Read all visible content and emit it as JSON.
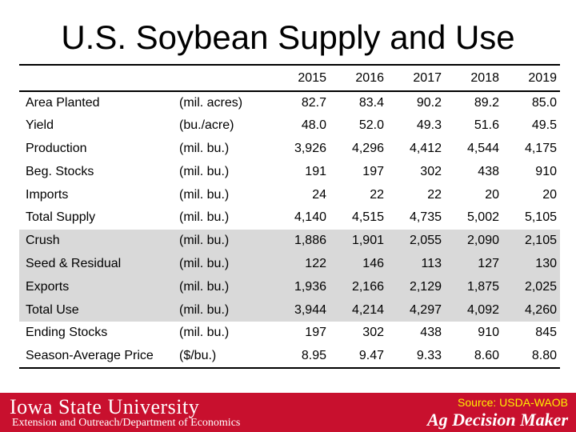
{
  "title": "U.S. Soybean Supply and Use",
  "years": [
    "2015",
    "2016",
    "2017",
    "2018",
    "2019"
  ],
  "rows": [
    {
      "label": "Area Planted",
      "unit": "(mil. acres)",
      "values": [
        "82.7",
        "83.4",
        "90.2",
        "89.2",
        "85.0"
      ],
      "shaded": false
    },
    {
      "label": "Yield",
      "unit": "(bu./acre)",
      "values": [
        "48.0",
        "52.0",
        "49.3",
        "51.6",
        "49.5"
      ],
      "shaded": false
    },
    {
      "label": "Production",
      "unit": "(mil. bu.)",
      "values": [
        "3,926",
        "4,296",
        "4,412",
        "4,544",
        "4,175"
      ],
      "shaded": false
    },
    {
      "label": "Beg. Stocks",
      "unit": "(mil. bu.)",
      "values": [
        "191",
        "197",
        "302",
        "438",
        "910"
      ],
      "shaded": false
    },
    {
      "label": "Imports",
      "unit": "(mil. bu.)",
      "values": [
        "24",
        "22",
        "22",
        "20",
        "20"
      ],
      "shaded": false
    },
    {
      "label": "Total Supply",
      "unit": "(mil. bu.)",
      "values": [
        "4,140",
        "4,515",
        "4,735",
        "5,002",
        "5,105"
      ],
      "shaded": false
    },
    {
      "label": "Crush",
      "unit": "(mil. bu.)",
      "values": [
        "1,886",
        "1,901",
        "2,055",
        "2,090",
        "2,105"
      ],
      "shaded": true
    },
    {
      "label": "Seed & Residual",
      "unit": "(mil. bu.)",
      "values": [
        "122",
        "146",
        "113",
        "127",
        "130"
      ],
      "shaded": true
    },
    {
      "label": "Exports",
      "unit": "(mil. bu.)",
      "values": [
        "1,936",
        "2,166",
        "2,129",
        "1,875",
        "2,025"
      ],
      "shaded": true
    },
    {
      "label": "Total Use",
      "unit": "(mil. bu.)",
      "values": [
        "3,944",
        "4,214",
        "4,297",
        "4,092",
        "4,260"
      ],
      "shaded": true
    },
    {
      "label": "Ending Stocks",
      "unit": "(mil. bu.)",
      "values": [
        "197",
        "302",
        "438",
        "910",
        "845"
      ],
      "shaded": false
    },
    {
      "label": "Season-Average Price",
      "unit": "($/bu.)",
      "values": [
        "8.95",
        "9.47",
        "9.33",
        "8.60",
        "8.80"
      ],
      "shaded": false
    }
  ],
  "footer": {
    "university": "Iowa State University",
    "department": "Extension and Outreach/Department of Economics",
    "source": "Source: USDA-WAOB",
    "program": "Ag Decision Maker",
    "bar_color": "#c8102e",
    "source_color": "#fff200"
  }
}
